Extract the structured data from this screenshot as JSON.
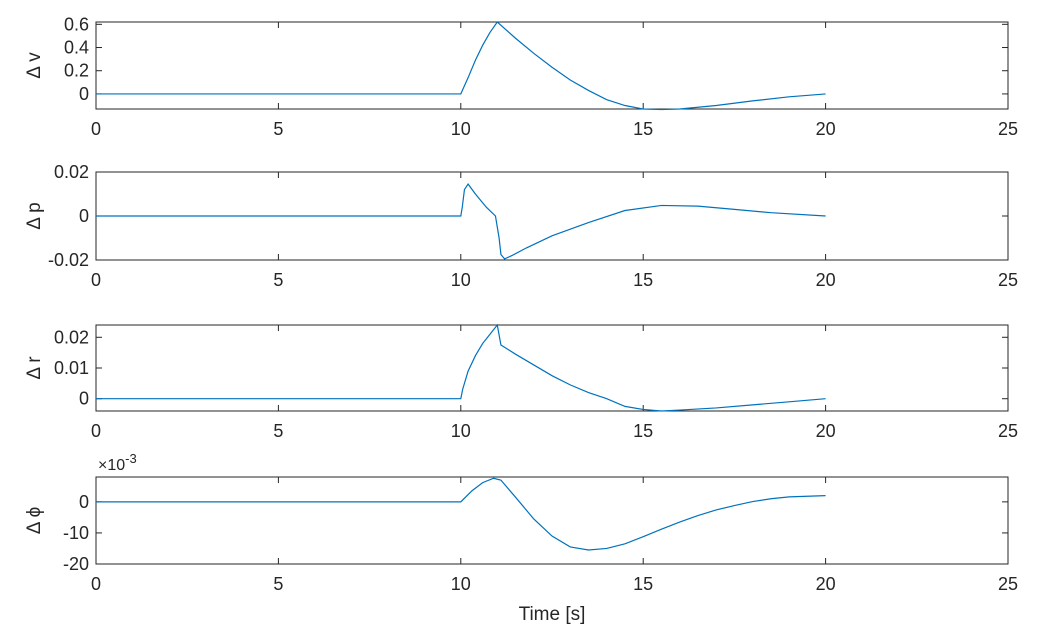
{
  "chart_data": [
    {
      "type": "line",
      "ylabel": "Δ v",
      "xlim": [
        0,
        25
      ],
      "ylim": [
        -0.13,
        0.62
      ],
      "xticks": [
        "0",
        "5",
        "10",
        "15",
        "20",
        "25"
      ],
      "yticks": [
        {
          "value": 0.6,
          "label": "0.6"
        },
        {
          "value": 0.4,
          "label": "0.4"
        },
        {
          "value": 0.2,
          "label": "0.2"
        },
        {
          "value": 0,
          "label": "0"
        }
      ],
      "exponent_label": "",
      "color": "#0072BD",
      "series": [
        {
          "x": [
            0,
            10,
            10.2,
            10.4,
            10.6,
            10.8,
            11.0,
            11.5,
            12.0,
            12.5,
            13.0,
            13.5,
            14.0,
            14.5,
            15.0,
            15.5,
            16.0,
            17.0,
            18.0,
            19.0,
            20.0
          ],
          "y": [
            0,
            0,
            0.14,
            0.29,
            0.42,
            0.53,
            0.62,
            0.48,
            0.35,
            0.23,
            0.12,
            0.03,
            -0.05,
            -0.1,
            -0.13,
            -0.135,
            -0.13,
            -0.1,
            -0.06,
            -0.025,
            0
          ]
        }
      ]
    },
    {
      "type": "line",
      "ylabel": "Δ p",
      "xlim": [
        0,
        25
      ],
      "ylim": [
        -0.02,
        0.02
      ],
      "xticks": [
        "0",
        "5",
        "10",
        "15",
        "20",
        "25"
      ],
      "yticks": [
        {
          "value": 0.02,
          "label": "0.02"
        },
        {
          "value": 0,
          "label": "0"
        },
        {
          "value": -0.02,
          "label": "-0.02"
        }
      ],
      "exponent_label": "",
      "color": "#0072BD",
      "series": [
        {
          "x": [
            0,
            10,
            10.04,
            10.1,
            10.2,
            10.4,
            10.7,
            10.95,
            11.05,
            11.1,
            11.2,
            11.4,
            11.8,
            12.5,
            13.5,
            14.5,
            15.5,
            16.5,
            17.5,
            18.5,
            20.0
          ],
          "y": [
            0,
            0,
            0.004,
            0.012,
            0.0145,
            0.01,
            0.004,
            0.0,
            -0.01,
            -0.0175,
            -0.0195,
            -0.018,
            -0.0145,
            -0.009,
            -0.003,
            0.0025,
            0.0048,
            0.0045,
            0.003,
            0.0015,
            0
          ]
        }
      ]
    },
    {
      "type": "line",
      "ylabel": "Δ r",
      "xlim": [
        0,
        25
      ],
      "ylim": [
        -0.004,
        0.024
      ],
      "xticks": [
        "0",
        "5",
        "10",
        "15",
        "20",
        "25"
      ],
      "yticks": [
        {
          "value": 0.02,
          "label": "0.02"
        },
        {
          "value": 0.01,
          "label": "0.01"
        },
        {
          "value": 0,
          "label": "0"
        }
      ],
      "exponent_label": "",
      "color": "#0072BD",
      "series": [
        {
          "x": [
            0,
            10,
            10.05,
            10.2,
            10.4,
            10.6,
            10.8,
            11.0,
            11.1,
            11.5,
            12.0,
            12.5,
            13.0,
            13.5,
            14.0,
            14.5,
            15.0,
            15.5,
            16.0,
            17.0,
            18.0,
            19.0,
            20.0
          ],
          "y": [
            0,
            0,
            0.003,
            0.009,
            0.014,
            0.018,
            0.021,
            0.024,
            0.0175,
            0.0145,
            0.011,
            0.0075,
            0.0045,
            0.002,
            0.0,
            -0.0025,
            -0.0035,
            -0.004,
            -0.0037,
            -0.003,
            -0.002,
            -0.001,
            0
          ]
        }
      ]
    },
    {
      "type": "line",
      "ylabel": "Δ ϕ",
      "xlim": [
        0,
        25
      ],
      "ylim": [
        -20,
        8
      ],
      "xticks": [
        "0",
        "5",
        "10",
        "15",
        "20",
        "25"
      ],
      "yticks": [
        {
          "value": 0,
          "label": "0"
        },
        {
          "value": -10,
          "label": "-10"
        },
        {
          "value": -20,
          "label": "-20"
        }
      ],
      "exponent_label": "×10",
      "exponent_power": "-3",
      "xlabel": "Time [s]",
      "color": "#0072BD",
      "series": [
        {
          "x": [
            0,
            10,
            10.3,
            10.6,
            10.9,
            11.1,
            11.5,
            12.0,
            12.5,
            13.0,
            13.5,
            14.0,
            14.5,
            15.0,
            15.5,
            16.0,
            16.5,
            17.0,
            17.5,
            18.0,
            18.5,
            19.0,
            20.0
          ],
          "y": [
            0,
            0,
            3.5,
            6.2,
            7.6,
            7.0,
            1.5,
            -5.5,
            -11.0,
            -14.5,
            -15.5,
            -15.0,
            -13.5,
            -11.2,
            -8.8,
            -6.5,
            -4.4,
            -2.6,
            -1.2,
            0.1,
            1.0,
            1.6,
            2.0
          ]
        }
      ]
    }
  ]
}
